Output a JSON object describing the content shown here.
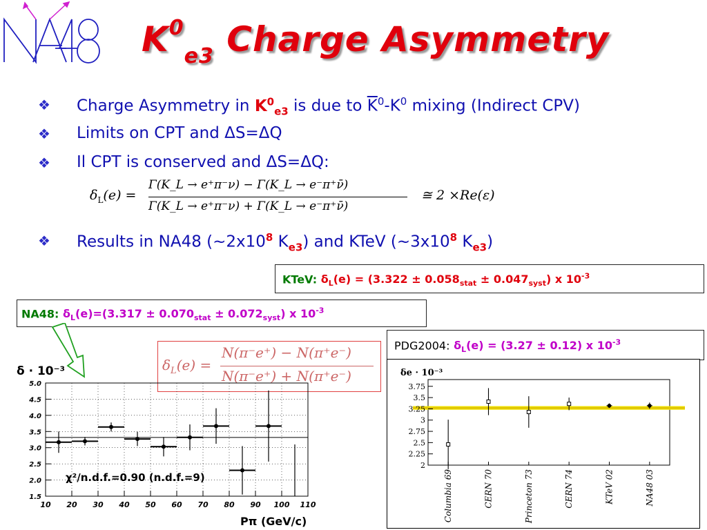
{
  "logo": {
    "text": "NA48",
    "color": "#2020c0",
    "arrow_color": "#d020d0"
  },
  "title": {
    "main": "K",
    "sup": "0",
    "sub": "e3",
    "rest": " Charge Asymmetry",
    "color": "#e0000c"
  },
  "bullets": [
    {
      "a": "Charge Asymmetry in ",
      "k": "K",
      "ksup": "0",
      "ksub": "e3",
      "b": " is due to ",
      "kbar": "K",
      "kbarsup": "0",
      "c": "-K",
      "csup": "0",
      "d": " mixing (Indirect CPV)"
    },
    {
      "text": "Limits on CPT and ΔS=ΔQ"
    },
    {
      "text": "Il CPT is conserved and ΔS=ΔQ:"
    },
    {
      "a": "Results in NA48 (~2x10",
      "asup": "8",
      "b": " K",
      "bsub": "e3",
      "c": ") and KTeV (~3x10",
      "csup": "8",
      "d": " K",
      "dsub": "e3",
      "e": ")"
    }
  ],
  "formula": {
    "lhs": "δ",
    "lhs_sub": "L",
    "lhs_arg": "(e) =",
    "num": "Γ(K_L → e⁺π⁻ν) − Γ(K_L → e⁻π⁺ν̄)",
    "den": "Γ(K_L → e⁺π⁻ν) + Γ(K_L → e⁻π⁺ν̄)",
    "rhs": "≅ 2 ×Re(ε)"
  },
  "ktev": {
    "label": "KTeV:",
    "delta": "δ",
    "dsub": "L",
    "val": "(e) = (3.322 ± 0.058",
    "s1": "stat",
    "mid": " ± 0.047",
    "s2": "syst",
    "end": ") x 10",
    "exp": "-3"
  },
  "na48": {
    "label": "NA48:",
    "delta": "δ",
    "dsub": "L",
    "val": "(e)=(3.317 ± 0.070",
    "s1": "stat",
    "mid": " ± 0.072",
    "s2": "syst",
    "end": ") x 10",
    "exp": "-3"
  },
  "pdg": {
    "label": "PDG2004:",
    "delta": "δ",
    "dsub": "L",
    "val": "(e) = (3.27 ± 0.12) x 10",
    "exp": "-3"
  },
  "math_box": {
    "lhs": "δ",
    "lhs_sub": "L",
    "lhs_arg": "(e) =",
    "num": "N(π⁻e⁺) − N(π⁺e⁻)",
    "den": "N(π⁻e⁺) + N(π⁺e⁻)"
  },
  "chart_data": [
    {
      "type": "scatter",
      "ylabel": "δ · 10⁻³",
      "xlabel": "Pπ  (GeV/c)",
      "xlim": [
        10,
        110
      ],
      "ylim": [
        1.5,
        5.0
      ],
      "xticks": [
        "10",
        "20",
        "30",
        "40",
        "50",
        "60",
        "70",
        "80",
        "90",
        "100",
        "110"
      ],
      "yticks": [
        "1.5",
        "2.0",
        "2.5",
        "3.0",
        "3.5",
        "4.0",
        "4.5",
        "5.0"
      ],
      "annotation": "χ²/n.d.f.=0.90  (n.d.f.=9)",
      "fit_value": 3.317,
      "points": [
        {
          "x": 15,
          "xerr": 5,
          "y": 3.17,
          "yerr": 0.33
        },
        {
          "x": 25,
          "xerr": 5,
          "y": 3.2,
          "yerr": 0.13
        },
        {
          "x": 35,
          "xerr": 5,
          "y": 3.64,
          "yerr": 0.14
        },
        {
          "x": 45,
          "xerr": 5,
          "y": 3.27,
          "yerr": 0.22
        },
        {
          "x": 55,
          "xerr": 5,
          "y": 3.03,
          "yerr": 0.3
        },
        {
          "x": 65,
          "xerr": 5,
          "y": 3.32,
          "yerr": 0.4
        },
        {
          "x": 75,
          "xerr": 5,
          "y": 3.67,
          "yerr": 0.55
        },
        {
          "x": 85,
          "xerr": 5,
          "y": 2.3,
          "yerr": 0.75
        },
        {
          "x": 95,
          "xerr": 5,
          "y": 3.67,
          "yerr": 1.1
        },
        {
          "x": 105,
          "xerr": 0,
          "y": 1.5,
          "yerr": 1.6
        }
      ]
    },
    {
      "type": "scatter",
      "ylabel": "δe · 10⁻³",
      "ylim": [
        2,
        3.9
      ],
      "yticks": [
        "2",
        "2.25",
        "2.5",
        "2.75",
        "3",
        "3.25",
        "3.5",
        "3.75"
      ],
      "band": {
        "center": 3.27,
        "err": 0.04,
        "color": "#f0e000"
      },
      "categories": [
        "Columbia 69",
        "CERN 70",
        "Princeton 73",
        "CERN 74",
        "KTeV 02",
        "NA48 03"
      ],
      "values": [
        2.46,
        3.41,
        3.18,
        3.36,
        3.32,
        3.32
      ],
      "errors": [
        0.55,
        0.3,
        0.35,
        0.14,
        0.05,
        0.07
      ]
    }
  ]
}
